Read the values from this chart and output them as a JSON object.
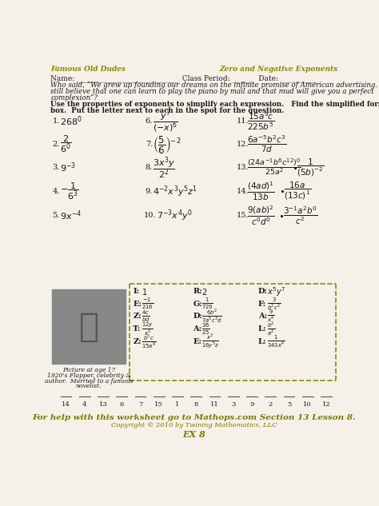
{
  "header_left": "Famous Old Dudes",
  "header_right": "Zero and Negative Exponents",
  "header_color": "#8B8B00",
  "bg_color": "#f5f0e8",
  "text_color": "#1a1a1a",
  "footer_text": "For help with this worksheet go to Mathops.com Section 13 Lesson 8.",
  "footer_sub": "Copyright © 2010 by Twining Mathematics, LLC",
  "footer_id": "EX 8",
  "olive": "#7a7a00",
  "brown_footer": "#7a6000",
  "dash_nums": [
    "14",
    "4",
    "13",
    "6",
    "7",
    "15",
    "1",
    "8",
    "11",
    "3",
    "9",
    "2",
    "5",
    "10",
    "12"
  ]
}
